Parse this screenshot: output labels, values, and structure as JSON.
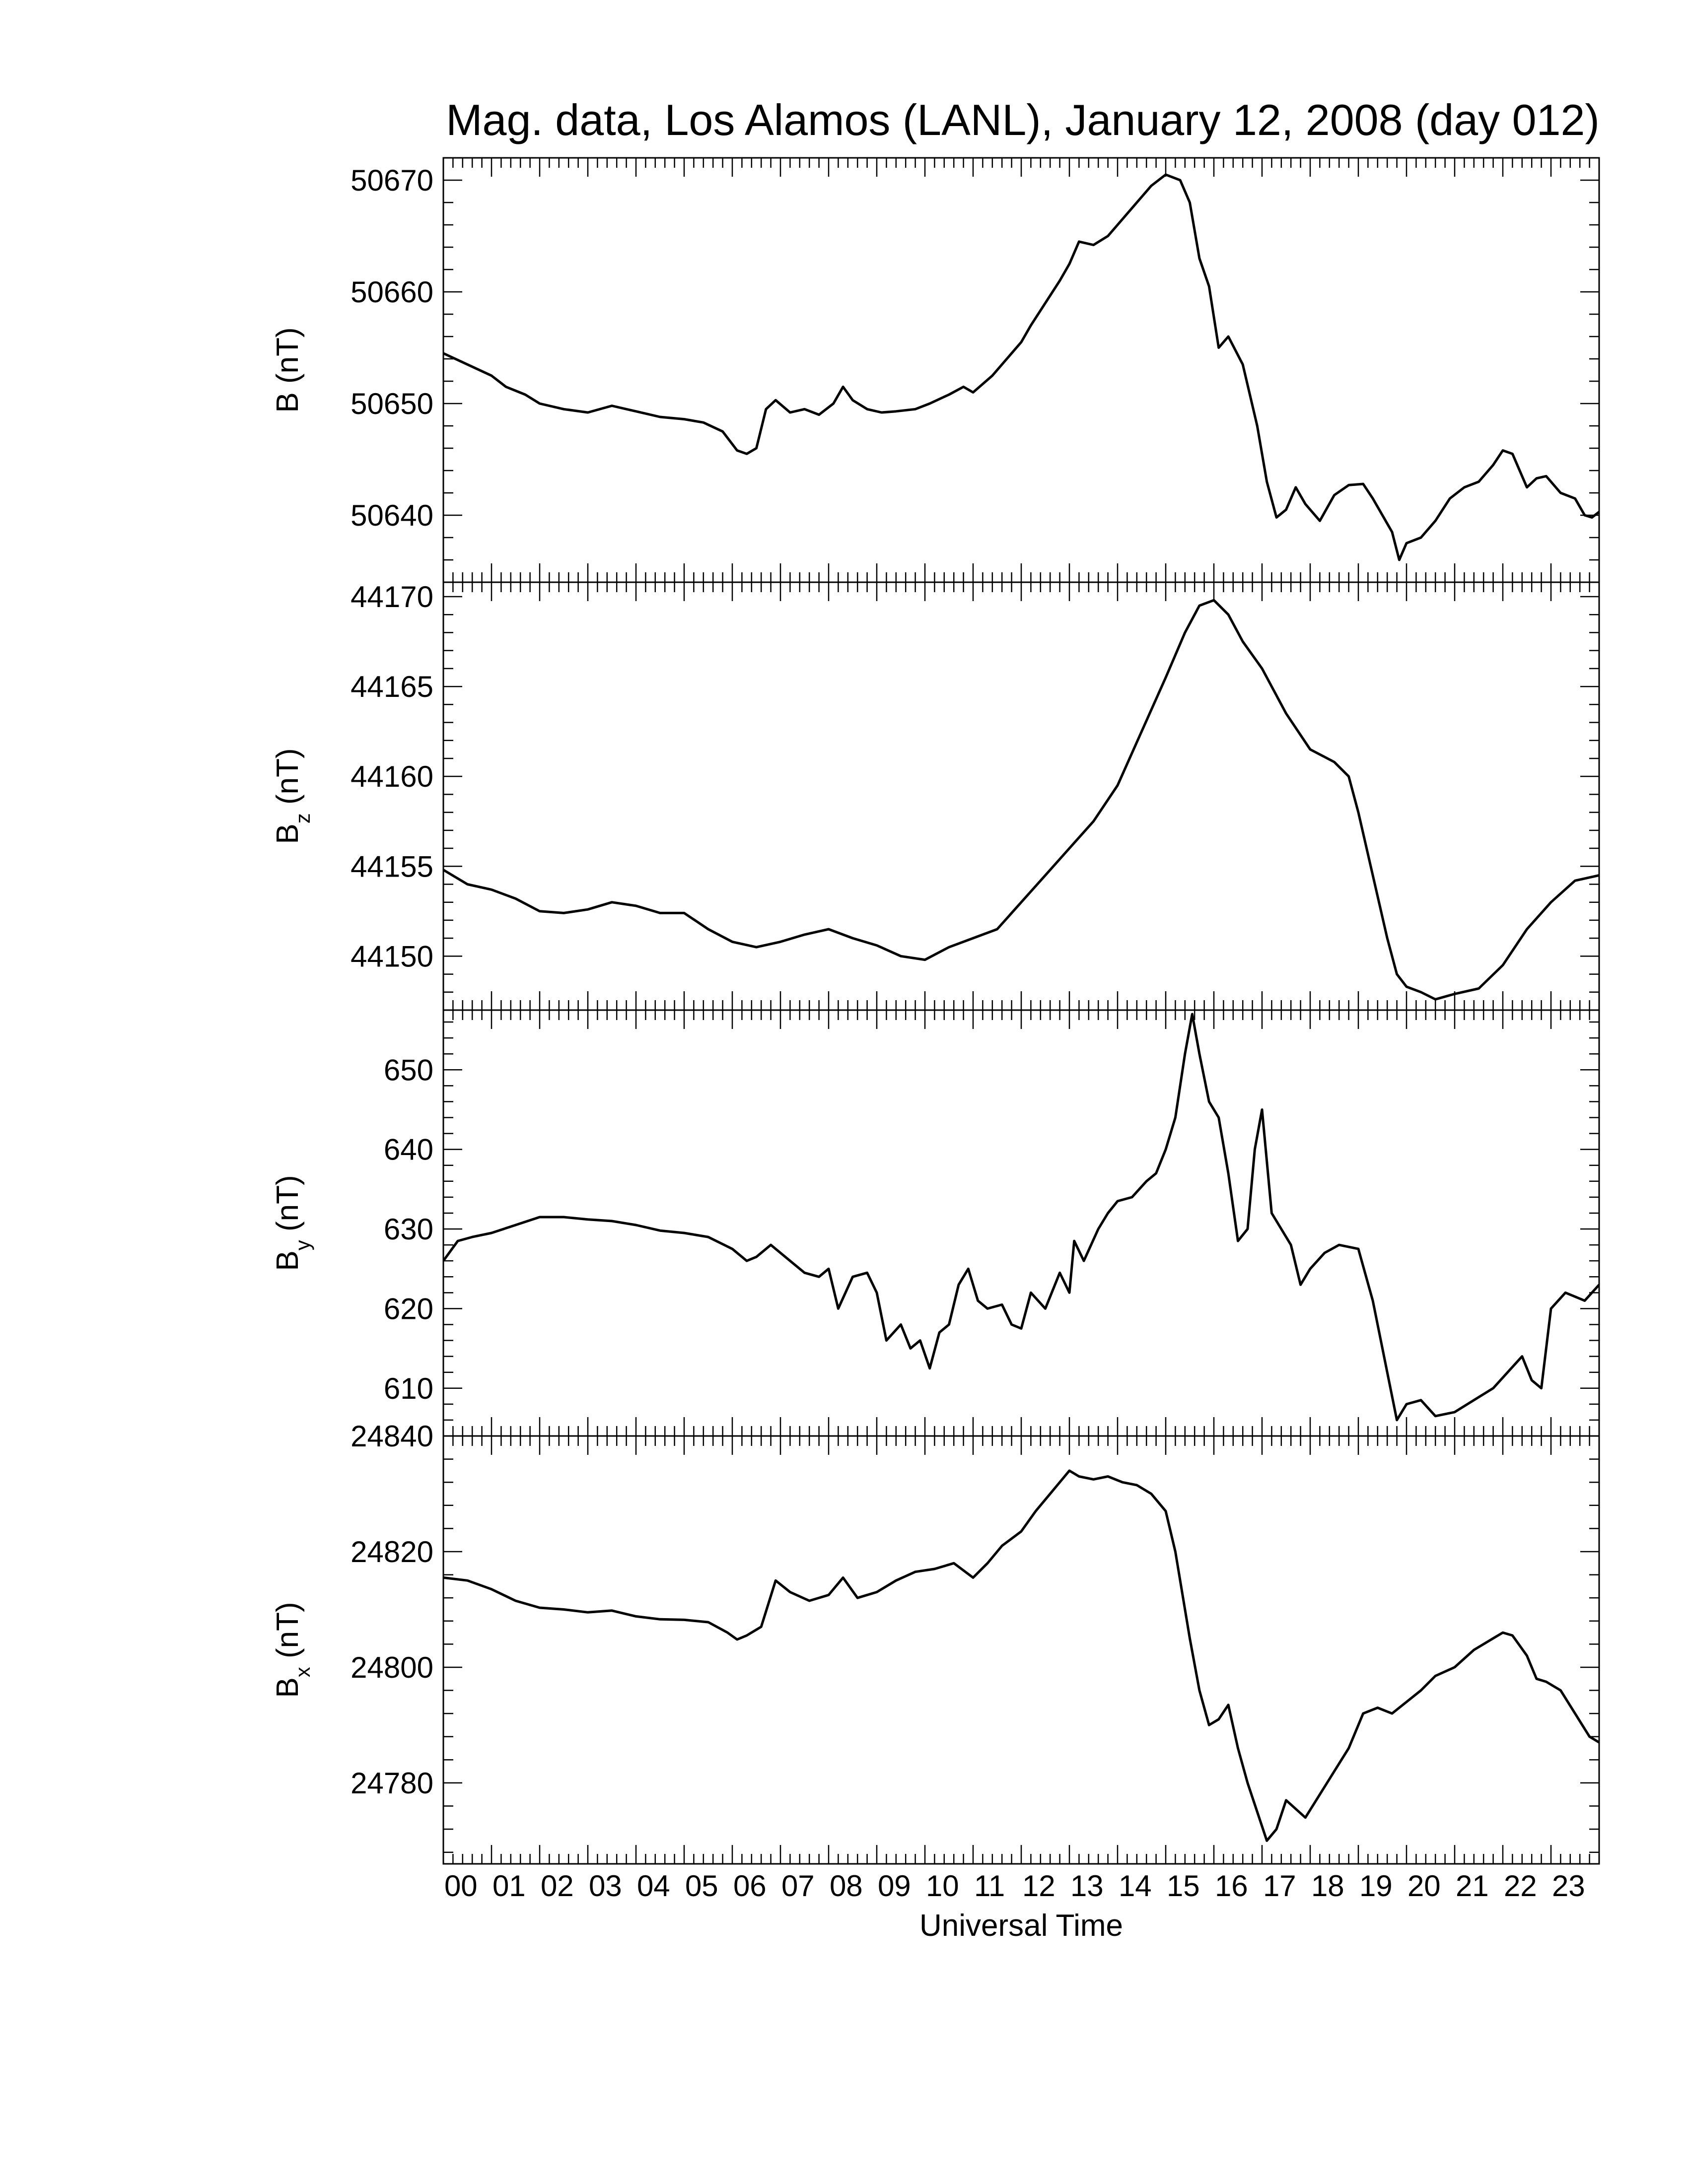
{
  "chart_data": {
    "type": "line",
    "title": "Mag. data, Los Alamos (LANL), January 12, 2008 (day 012)",
    "xlabel": "Universal Time",
    "x_ticks": [
      "00",
      "01",
      "02",
      "03",
      "04",
      "05",
      "06",
      "07",
      "08",
      "09",
      "10",
      "11",
      "12",
      "13",
      "14",
      "15",
      "16",
      "17",
      "18",
      "19",
      "20",
      "21",
      "22",
      "23"
    ],
    "xlim": [
      0,
      24
    ],
    "x_units": "hours UT",
    "panels": [
      {
        "ylabel_base": "B",
        "ylabel_sub": "",
        "ylabel_unit": "(nT)",
        "ylim": [
          50634,
          50672
        ],
        "yticks": [
          50640,
          50650,
          50660,
          50670
        ],
        "series": [
          {
            "x": [
              0,
              0.5,
              1,
              1.3,
              1.7,
              2,
              2.5,
              3,
              3.5,
              4,
              4.5,
              5,
              5.4,
              5.8,
              6.1,
              6.3,
              6.5,
              6.7,
              6.9,
              7.2,
              7.5,
              7.8,
              8.1,
              8.3,
              8.5,
              8.8,
              9.1,
              9.4,
              9.8,
              10.1,
              10.5,
              10.8,
              11,
              11.4,
              11.7,
              12,
              12.2,
              12.5,
              12.8,
              13,
              13.2,
              13.5,
              13.8,
              14.1,
              14.4,
              14.7,
              15,
              15.3,
              15.5,
              15.7,
              15.9,
              16.1,
              16.3,
              16.6,
              16.9,
              17.1,
              17.3,
              17.5,
              17.7,
              17.9,
              18.2,
              18.5,
              18.8,
              19.1,
              19.3,
              19.5,
              19.7,
              19.85,
              20,
              20.3,
              20.6,
              20.9,
              21.2,
              21.5,
              21.8,
              22,
              22.2,
              22.4,
              22.5,
              22.7,
              22.9,
              23.2,
              23.5,
              23.7,
              23.85,
              24
            ],
            "y": [
              50654.5,
              50653.5,
              50652.5,
              50651.5,
              50650.8,
              50650,
              50649.5,
              50649.2,
              50649.8,
              50649.3,
              50648.8,
              50648.6,
              50648.3,
              50647.5,
              50645.8,
              50645.5,
              50646,
              50649.5,
              50650.3,
              50649.2,
              50649.5,
              50649,
              50650,
              50651.5,
              50650.3,
              50649.5,
              50649.2,
              50649.3,
              50649.5,
              50650,
              50650.8,
              50651.5,
              50651,
              50652.5,
              50654,
              50655.5,
              50657,
              50659,
              50661,
              50662.5,
              50664.5,
              50664.2,
              50665,
              50666.5,
              50668,
              50669.5,
              50670.5,
              50670,
              50668,
              50663,
              50660.5,
              50655,
              50656,
              50653.5,
              50648,
              50643,
              50639.8,
              50640.5,
              50642.5,
              50641,
              50639.5,
              50641.8,
              50642.7,
              50642.8,
              50641.5,
              50640,
              50638.5,
              50636,
              50637.5,
              50638,
              50639.5,
              50641.5,
              50642.5,
              50643,
              50644.5,
              50645.8,
              50645.5,
              50643.5,
              50642.5,
              50643.3,
              50643.5,
              50642,
              50641.5,
              50640,
              50639.8,
              50640.3
            ]
          }
        ]
      },
      {
        "ylabel_base": "B",
        "ylabel_sub": "z",
        "ylabel_unit": "(nT)",
        "ylim": [
          44147,
          44170.8
        ],
        "yticks": [
          44150,
          44155,
          44160,
          44165,
          44170
        ],
        "series": [
          {
            "x": [
              0,
              0.5,
              1,
              1.5,
              2,
              2.5,
              3,
              3.5,
              4,
              4.5,
              5,
              5.5,
              6,
              6.5,
              7,
              7.5,
              8,
              8.5,
              9,
              9.5,
              10,
              10.5,
              11,
              11.5,
              12,
              12.5,
              13,
              13.5,
              14,
              14.5,
              15,
              15.4,
              15.7,
              16,
              16.3,
              16.6,
              17,
              17.5,
              18,
              18.5,
              18.8,
              19,
              19.3,
              19.6,
              19.8,
              20,
              20.3,
              20.6,
              21,
              21.5,
              22,
              22.5,
              23,
              23.5,
              24
            ],
            "y": [
              44154.8,
              44154,
              44153.7,
              44153.2,
              44152.5,
              44152.4,
              44152.6,
              44153,
              44152.8,
              44152.4,
              44152.4,
              44151.5,
              44150.8,
              44150.5,
              44150.8,
              44151.2,
              44151.5,
              44151,
              44150.6,
              44150,
              44149.8,
              44150.5,
              44151,
              44151.5,
              44153,
              44154.5,
              44156,
              44157.5,
              44159.5,
              44162.5,
              44165.5,
              44168,
              44169.5,
              44169.8,
              44169,
              44167.5,
              44166,
              44163.5,
              44161.5,
              44160.8,
              44160,
              44158,
              44154.5,
              44151,
              44149,
              44148.3,
              44148,
              44147.6,
              44147.9,
              44148.2,
              44149.5,
              44151.5,
              44153,
              44154.2,
              44154.5
            ]
          }
        ]
      },
      {
        "ylabel_base": "B",
        "ylabel_sub": "y",
        "ylabel_unit": "(nT)",
        "ylim": [
          604,
          657.5
        ],
        "yticks": [
          610,
          620,
          630,
          640,
          650
        ],
        "series": [
          {
            "x": [
              0,
              0.3,
              0.6,
              1,
              1.5,
              2,
              2.5,
              3,
              3.5,
              4,
              4.5,
              5,
              5.5,
              6,
              6.3,
              6.5,
              6.8,
              7.2,
              7.5,
              7.8,
              8,
              8.2,
              8.5,
              8.8,
              9,
              9.2,
              9.5,
              9.7,
              9.9,
              10.1,
              10.3,
              10.5,
              10.7,
              10.9,
              11.1,
              11.3,
              11.6,
              11.8,
              12,
              12.2,
              12.5,
              12.8,
              13,
              13.1,
              13.3,
              13.6,
              13.8,
              14,
              14.3,
              14.6,
              14.8,
              15,
              15.2,
              15.4,
              15.55,
              15.7,
              15.9,
              16.1,
              16.3,
              16.5,
              16.7,
              16.85,
              17,
              17.2,
              17.4,
              17.6,
              17.8,
              18,
              18.3,
              18.6,
              19,
              19.3,
              19.6,
              19.8,
              20,
              20.3,
              20.6,
              21,
              21.4,
              21.8,
              22.1,
              22.4,
              22.6,
              22.8,
              23,
              23.3,
              23.5,
              23.7,
              24
            ],
            "y": [
              626,
              628.5,
              629,
              629.5,
              630.5,
              631.5,
              631.5,
              631.2,
              631,
              630.5,
              629.8,
              629.5,
              629,
              627.5,
              626,
              626.5,
              628,
              626,
              624.5,
              624,
              625,
              620,
              624,
              624.5,
              622,
              616,
              618,
              615,
              616,
              612.5,
              617,
              618,
              623,
              625,
              621,
              620,
              620.5,
              618,
              617.5,
              622,
              620,
              624.5,
              622,
              628.5,
              626,
              630,
              632,
              633.5,
              634,
              636,
              637,
              640,
              644,
              652,
              657,
              652,
              646,
              644,
              637,
              628.5,
              630,
              640,
              645,
              632,
              630,
              628,
              623,
              625,
              627,
              628,
              627.5,
              621,
              612,
              606,
              608,
              608.5,
              606.5,
              607,
              608.5,
              610,
              612,
              614,
              611,
              610,
              620,
              622,
              621.5,
              621,
              623
            ]
          }
        ]
      },
      {
        "ylabel_base": "B",
        "ylabel_sub": "x",
        "ylabel_unit": "(nT)",
        "ylim": [
          24766,
          24840
        ],
        "yticks": [
          24780,
          24800,
          24820,
          24840
        ],
        "series": [
          {
            "x": [
              0,
              0.5,
              1,
              1.5,
              2,
              2.5,
              3,
              3.5,
              4,
              4.5,
              5,
              5.5,
              5.9,
              6.1,
              6.3,
              6.6,
              6.9,
              7.2,
              7.6,
              8,
              8.3,
              8.6,
              9,
              9.4,
              9.8,
              10.2,
              10.6,
              11,
              11.3,
              11.6,
              12,
              12.3,
              12.6,
              12.8,
              13,
              13.2,
              13.5,
              13.8,
              14.1,
              14.4,
              14.7,
              15,
              15.2,
              15.5,
              15.7,
              15.9,
              16.1,
              16.3,
              16.5,
              16.7,
              16.9,
              17.1,
              17.3,
              17.5,
              17.7,
              17.9,
              18.2,
              18.5,
              18.8,
              19.1,
              19.4,
              19.7,
              20,
              20.3,
              20.6,
              21,
              21.4,
              21.8,
              22,
              22.2,
              22.5,
              22.7,
              22.9,
              23.2,
              23.5,
              23.8,
              24
            ],
            "y": [
              24815.5,
              24815,
              24813.5,
              24811.5,
              24810.3,
              24810,
              24809.5,
              24809.8,
              24808.8,
              24808.3,
              24808.2,
              24807.8,
              24806,
              24804.8,
              24805.5,
              24807,
              24815,
              24813,
              24811.5,
              24812.5,
              24815.5,
              24812,
              24813,
              24815,
              24816.5,
              24817,
              24818,
              24815.5,
              24818,
              24821,
              24823.5,
              24827,
              24830,
              24832,
              24834,
              24833,
              24832.5,
              24833,
              24832,
              24831.5,
              24830,
              24827,
              24820,
              24805,
              24796,
              24790,
              24791,
              24793.5,
              24786,
              24780,
              24775,
              24770,
              24772,
              24777,
              24775.5,
              24774,
              24778,
              24782,
              24786,
              24792,
              24793,
              24792,
              24794,
              24796,
              24798.5,
              24800,
              24803,
              24805,
              24806,
              24805.5,
              24802,
              24798,
              24797.5,
              24796,
              24792,
              24788,
              24787
            ]
          }
        ]
      }
    ]
  }
}
